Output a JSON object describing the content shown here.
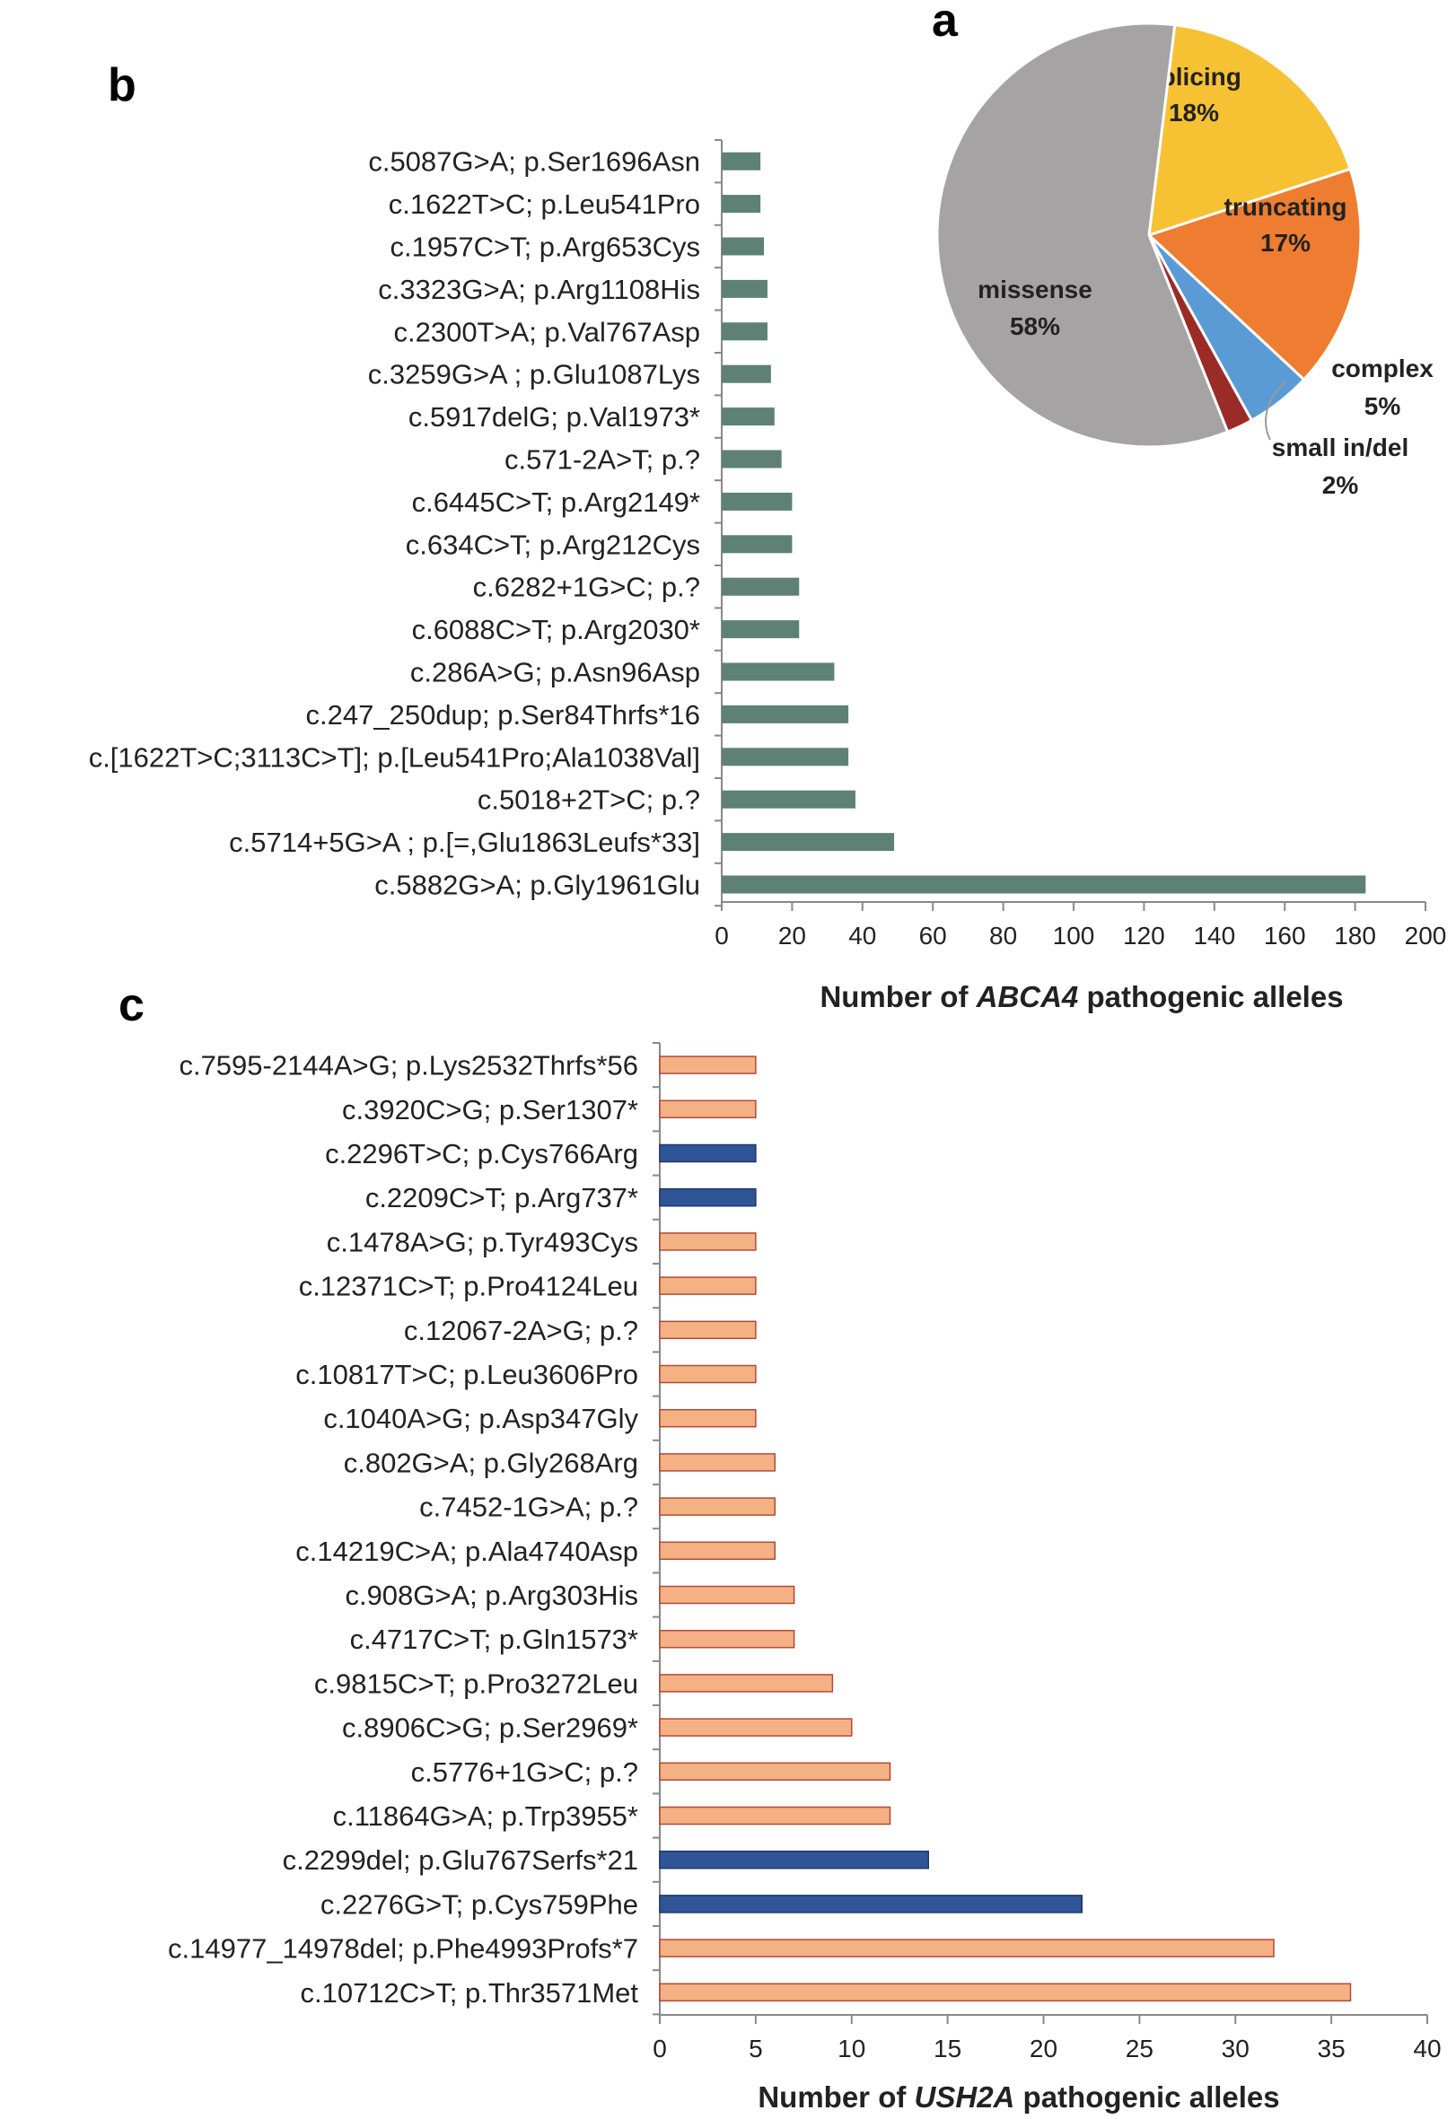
{
  "chart_data": [
    {
      "panel": "a",
      "type": "pie",
      "slices": [
        {
          "label": "splicing",
          "percent_label": "18%",
          "value": 18,
          "color": "#F6C233"
        },
        {
          "label": "truncating",
          "percent_label": "17%",
          "value": 17,
          "color": "#EE7D31"
        },
        {
          "label": "complex",
          "percent_label": "5%",
          "value": 5,
          "color": "#5B9BD5"
        },
        {
          "label": "small in/del",
          "percent_label": "2%",
          "value": 2,
          "color": "#9B2B27"
        },
        {
          "label": "missense",
          "percent_label": "58%",
          "value": 58,
          "color": "#A5A3A3"
        }
      ]
    },
    {
      "panel": "b",
      "type": "bar",
      "orientation": "horizontal",
      "xlabel_prefix": "Number of ",
      "xlabel_gene": "ABCA4",
      "xlabel_suffix": " pathogenic alleles",
      "xlim": [
        0,
        200
      ],
      "xticks": [
        "0",
        "20",
        "40",
        "60",
        "80",
        "100",
        "120",
        "140",
        "160",
        "180",
        "200"
      ],
      "bar_color": "#5E8176",
      "categories": [
        "c.5087G>A; p.Ser1696Asn",
        "c.1622T>C; p.Leu541Pro",
        "c.1957C>T; p.Arg653Cys",
        "c.3323G>A; p.Arg1108His",
        "c.2300T>A; p.Val767Asp",
        "c.3259G>A ; p.Glu1087Lys",
        "c.5917delG; p.Val1973*",
        "c.571-2A>T; p.?",
        "c.6445C>T; p.Arg2149*",
        "c.634C>T; p.Arg212Cys",
        "c.6282+1G>C; p.?",
        "c.6088C>T; p.Arg2030*",
        "c.286A>G; p.Asn96Asp",
        "c.247_250dup; p.Ser84Thrfs*16",
        "c.[1622T>C;3113C>T]; p.[Leu541Pro;Ala1038Val]",
        "c.5018+2T>C; p.?",
        "c.5714+5G>A ; p.[=,Glu1863Leufs*33]",
        "c.5882G>A; p.Gly1961Glu"
      ],
      "values": [
        11,
        11,
        12,
        13,
        13,
        14,
        15,
        17,
        20,
        20,
        22,
        22,
        32,
        36,
        36,
        38,
        49,
        183
      ]
    },
    {
      "panel": "c",
      "type": "bar",
      "orientation": "horizontal",
      "xlabel_prefix": "Number of ",
      "xlabel_gene": "USH2A",
      "xlabel_suffix": " pathogenic alleles",
      "xlim": [
        0,
        40
      ],
      "xticks": [
        "0",
        "5",
        "10",
        "15",
        "20",
        "25",
        "30",
        "35",
        "40"
      ],
      "colors": {
        "orange": "#F4B183",
        "orange_edge": "#B04A3A",
        "blue": "#2F5597"
      },
      "categories": [
        "c.7595-2144A>G; p.Lys2532Thrfs*56",
        "c.3920C>G; p.Ser1307*",
        "c.2296T>C; p.Cys766Arg",
        "c.2209C>T; p.Arg737*",
        "c.1478A>G; p.Tyr493Cys",
        "c.12371C>T; p.Pro4124Leu",
        "c.12067-2A>G; p.?",
        "c.10817T>C; p.Leu3606Pro",
        "c.1040A>G; p.Asp347Gly",
        "c.802G>A; p.Gly268Arg",
        "c.7452-1G>A; p.?",
        "c.14219C>A; p.Ala4740Asp",
        "c.908G>A; p.Arg303His",
        "c.4717C>T; p.Gln1573*",
        "c.9815C>T; p.Pro3272Leu",
        "c.8906C>G; p.Ser2969*",
        "c.5776+1G>C; p.?",
        "c.11864G>A; p.Trp3955*",
        "c.2299del; p.Glu767Serfs*21",
        "c.2276G>T; p.Cys759Phe",
        "c.14977_14978del; p.Phe4993Profs*7",
        "c.10712C>T; p.Thr3571Met"
      ],
      "values": [
        5,
        5,
        5,
        5,
        5,
        5,
        5,
        5,
        5,
        6,
        6,
        6,
        7,
        7,
        9,
        10,
        12,
        12,
        14,
        22,
        32,
        36
      ],
      "bar_colors": [
        "orange",
        "orange",
        "blue",
        "blue",
        "orange",
        "orange",
        "orange",
        "orange",
        "orange",
        "orange",
        "orange",
        "orange",
        "orange",
        "orange",
        "orange",
        "orange",
        "orange",
        "orange",
        "blue",
        "blue",
        "orange",
        "orange"
      ]
    }
  ]
}
